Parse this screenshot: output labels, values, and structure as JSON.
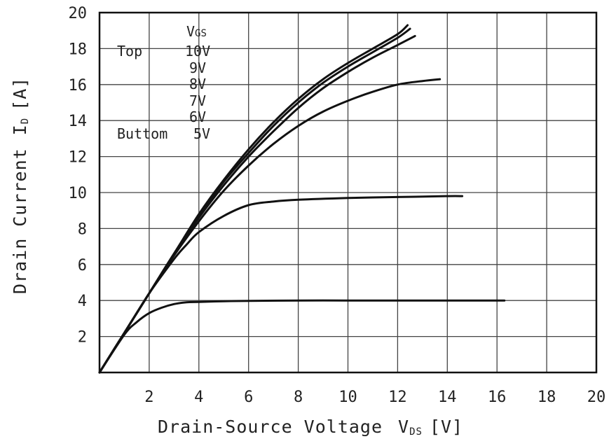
{
  "chart_data": {
    "type": "line",
    "title": "",
    "xlabel": "Drain-Source Voltage",
    "xlabel_symbol": "V",
    "xlabel_sub": "DS",
    "xlabel_unit": "[V]",
    "ylabel": "Drain Current",
    "ylabel_symbol": "I",
    "ylabel_sub": "D",
    "ylabel_unit": "[A]",
    "xlim": [
      0,
      20
    ],
    "ylim": [
      0,
      20
    ],
    "xticks": [
      2,
      4,
      6,
      8,
      10,
      12,
      14,
      16,
      18,
      20
    ],
    "yticks": [
      2,
      4,
      6,
      8,
      10,
      12,
      14,
      16,
      18,
      20
    ],
    "grid": true,
    "legend": {
      "placement": "top-left",
      "header": "V",
      "header_sub": "GS",
      "top_label": "Top",
      "bottom_label": "Buttom",
      "entries": [
        "10V",
        "9V",
        "8V",
        "7V",
        "6V",
        "5V"
      ]
    },
    "series": [
      {
        "name": "10V",
        "x": [
          0,
          1,
          2,
          3,
          4,
          5,
          6,
          7,
          8,
          9,
          10,
          11,
          12,
          12.4
        ],
        "y": [
          0,
          2.2,
          4.4,
          6.6,
          8.8,
          10.7,
          12.4,
          13.9,
          15.2,
          16.3,
          17.2,
          18.0,
          18.8,
          19.3
        ]
      },
      {
        "name": "9V",
        "x": [
          0,
          1,
          2,
          3,
          4,
          5,
          6,
          7,
          8,
          9,
          10,
          11,
          12,
          12.5
        ],
        "y": [
          0,
          2.2,
          4.4,
          6.6,
          8.7,
          10.6,
          12.2,
          13.7,
          15.0,
          16.1,
          17.0,
          17.8,
          18.6,
          19.1
        ]
      },
      {
        "name": "8V",
        "x": [
          0,
          1,
          2,
          3,
          4,
          5,
          6,
          7,
          8,
          9,
          10,
          11,
          12,
          12.7
        ],
        "y": [
          0,
          2.2,
          4.4,
          6.6,
          8.6,
          10.4,
          12.0,
          13.4,
          14.7,
          15.8,
          16.7,
          17.5,
          18.2,
          18.7
        ]
      },
      {
        "name": "7V",
        "x": [
          0,
          1,
          2,
          3,
          4,
          5,
          6,
          7,
          8,
          9,
          10,
          11,
          12,
          13,
          13.7
        ],
        "y": [
          0,
          2.2,
          4.4,
          6.5,
          8.4,
          10.1,
          11.5,
          12.7,
          13.7,
          14.5,
          15.1,
          15.6,
          16.0,
          16.2,
          16.3
        ]
      },
      {
        "name": "6V",
        "x": [
          0,
          1,
          2,
          3,
          3.5,
          4,
          5,
          6,
          7,
          8,
          10,
          12,
          14,
          14.6
        ],
        "y": [
          0,
          2.2,
          4.4,
          6.3,
          7.1,
          7.8,
          8.7,
          9.3,
          9.5,
          9.6,
          9.7,
          9.75,
          9.8,
          9.8
        ]
      },
      {
        "name": "5V",
        "x": [
          0,
          1,
          1.5,
          2,
          2.5,
          3,
          3.5,
          4,
          5,
          6,
          8,
          10,
          12,
          14,
          16.3
        ],
        "y": [
          0,
          2.1,
          2.8,
          3.3,
          3.6,
          3.8,
          3.9,
          3.92,
          3.96,
          3.98,
          4.0,
          4.0,
          4.0,
          4.0,
          4.0
        ]
      }
    ]
  }
}
